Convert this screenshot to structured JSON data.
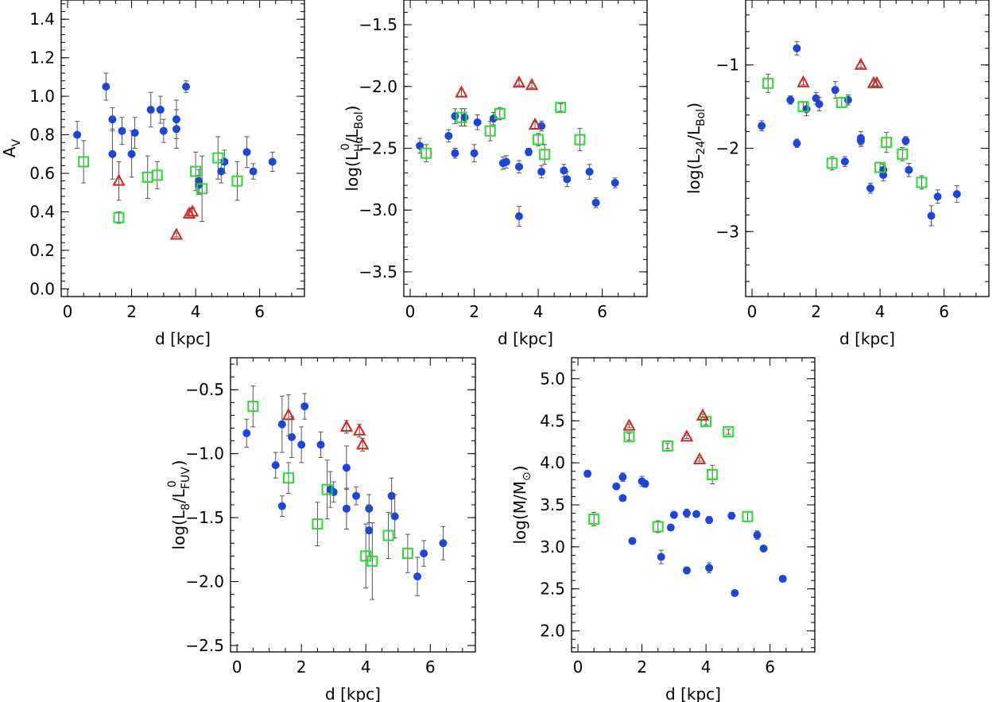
{
  "colors": {
    "blue": "#1747e0",
    "green": "#22e02a",
    "red": "#d6231c",
    "errorbar": "#555555",
    "axis": "#000000"
  },
  "series_styles": [
    {
      "marker": "filled-circle",
      "color": "#1747e0"
    },
    {
      "marker": "open-square",
      "color": "#22e02a"
    },
    {
      "marker": "open-triangle",
      "color": "#d6231c"
    }
  ],
  "chart_data": [
    {
      "type": "scatter",
      "xlabel": "d [kpc]",
      "ylabel": {
        "main": "A",
        "sub": "V"
      },
      "xlim": [
        -0.2,
        7.4
      ],
      "ylim": [
        -0.04,
        1.5
      ],
      "xticks": [
        0,
        2,
        4,
        6
      ],
      "xtick_labels": [
        "0",
        "2",
        "4",
        "6"
      ],
      "yticks": [
        0,
        0.2,
        0.4,
        0.6,
        0.8,
        1.0,
        1.2,
        1.4
      ],
      "ytick_labels": [
        "0.0",
        "0.2",
        "0.4",
        "0.6",
        "0.8",
        "1.0",
        "1.2",
        "1.4"
      ],
      "series": [
        {
          "x": [
            0.3,
            1.2,
            1.4,
            1.4,
            1.7,
            2.0,
            2.1,
            2.6,
            2.9,
            3.0,
            3.4,
            3.4,
            3.7,
            4.1,
            4.1,
            4.8,
            4.9,
            5.6,
            5.8,
            6.4
          ],
          "y": [
            0.8,
            1.05,
            0.88,
            0.7,
            0.82,
            0.7,
            0.81,
            0.93,
            0.93,
            0.82,
            0.83,
            0.88,
            1.05,
            0.56,
            0.54,
            0.61,
            0.66,
            0.71,
            0.61,
            0.66
          ],
          "err": [
            0.07,
            0.07,
            0.06,
            0.13,
            0.07,
            0.12,
            0.08,
            0.09,
            0.07,
            0.06,
            0.1,
            0.1,
            0.03,
            0.06,
            0.05,
            0.06,
            0.06,
            0.08,
            0.04,
            0.05
          ]
        },
        {
          "x": [
            0.5,
            1.6,
            2.5,
            2.8,
            4.0,
            4.2,
            4.7,
            5.3
          ],
          "y": [
            0.66,
            0.37,
            0.58,
            0.59,
            0.61,
            0.52,
            0.68,
            0.56
          ],
          "err": [
            0.11,
            0.03,
            0.11,
            0.07,
            0.1,
            0.17,
            0.11,
            0.1
          ]
        },
        {
          "x": [
            1.6,
            3.4,
            3.8,
            3.9
          ],
          "y": [
            0.56,
            0.28,
            0.39,
            0.4
          ],
          "err": [
            0.1,
            0.01,
            0.02,
            0.02
          ]
        }
      ]
    },
    {
      "type": "scatter",
      "xlabel": "d [kpc]",
      "ylabel": {
        "main": "log(L",
        "sub": "Hα",
        "sup": "0",
        "tail": "/L",
        "sub2": "Bol",
        "close": ")"
      },
      "xlim": [
        -0.2,
        7.4
      ],
      "ylim": [
        -3.7,
        -1.3
      ],
      "xticks": [
        0,
        2,
        4,
        6
      ],
      "xtick_labels": [
        "0",
        "2",
        "4",
        "6"
      ],
      "yticks": [
        -3.5,
        -3.0,
        -2.5,
        -2.0,
        -1.5
      ],
      "ytick_labels": [
        "−3.5",
        "−3.0",
        "−2.5",
        "−2.0",
        "−1.5"
      ],
      "series": [
        {
          "x": [
            0.3,
            1.2,
            1.4,
            1.4,
            1.7,
            2.0,
            2.1,
            2.6,
            2.9,
            3.0,
            3.4,
            3.4,
            3.7,
            4.1,
            4.1,
            4.8,
            4.9,
            5.6,
            5.8,
            6.4
          ],
          "y": [
            -2.48,
            -2.4,
            -2.24,
            -2.54,
            -2.25,
            -2.54,
            -2.29,
            -2.26,
            -2.62,
            -2.61,
            -2.65,
            -3.05,
            -2.53,
            -2.32,
            -2.69,
            -2.68,
            -2.75,
            -2.69,
            -2.94,
            -2.78
          ],
          "err": [
            0.06,
            0.05,
            0.06,
            0.04,
            0.07,
            0.07,
            0.06,
            0.05,
            0.05,
            0.05,
            0.05,
            0.08,
            0.03,
            0.04,
            0.05,
            0.05,
            0.06,
            0.06,
            0.04,
            0.04
          ]
        },
        {
          "x": [
            0.5,
            1.6,
            2.5,
            2.8,
            4.0,
            4.2,
            4.7,
            5.3
          ],
          "y": [
            -2.54,
            -2.25,
            -2.36,
            -2.22,
            -2.43,
            -2.55,
            -2.17,
            -2.43
          ],
          "err": [
            0.07,
            0.07,
            0.08,
            0.05,
            0.05,
            0.08,
            0.03,
            0.09
          ]
        },
        {
          "x": [
            1.6,
            3.4,
            3.8,
            3.9
          ],
          "y": [
            -2.05,
            -1.97,
            -1.99,
            -2.31
          ],
          "err": [
            0.03,
            0.02,
            0.02,
            0.03
          ]
        }
      ]
    },
    {
      "type": "scatter",
      "xlabel": "d [kpc]",
      "ylabel": {
        "main": "log(L",
        "sub": "24",
        "tail": "/L",
        "sub2": "Bol",
        "close": ")"
      },
      "xlim": [
        -0.2,
        7.4
      ],
      "ylim": [
        -3.78,
        -0.22
      ],
      "xticks": [
        0,
        2,
        4,
        6
      ],
      "xtick_labels": [
        "0",
        "2",
        "4",
        "6"
      ],
      "yticks": [
        -3,
        -2,
        -1
      ],
      "ytick_labels": [
        "−3",
        "−2",
        "−1"
      ],
      "series": [
        {
          "x": [
            0.3,
            1.2,
            1.4,
            1.4,
            1.7,
            2.0,
            2.1,
            2.6,
            2.9,
            3.0,
            3.4,
            3.4,
            3.7,
            4.1,
            4.1,
            4.8,
            4.9,
            5.6,
            5.8,
            6.4
          ],
          "y": [
            -1.73,
            -1.42,
            -0.8,
            -1.94,
            -1.53,
            -1.4,
            -1.47,
            -1.3,
            -2.16,
            -1.42,
            -1.91,
            -1.88,
            -2.48,
            -2.26,
            -2.32,
            -1.91,
            -2.26,
            -2.81,
            -2.58,
            -2.55
          ],
          "err": [
            0.06,
            0.05,
            0.08,
            0.05,
            0.08,
            0.07,
            0.08,
            0.1,
            0.06,
            0.06,
            0.07,
            0.08,
            0.06,
            0.07,
            0.07,
            0.05,
            0.08,
            0.12,
            0.08,
            0.1
          ]
        },
        {
          "x": [
            0.5,
            1.6,
            2.5,
            2.8,
            4.0,
            4.2,
            4.7,
            5.3
          ],
          "y": [
            -1.22,
            -1.5,
            -2.18,
            -1.45,
            -2.23,
            -1.93,
            -2.07,
            -2.41
          ],
          "err": [
            0.11,
            0.06,
            0.08,
            0.06,
            0.06,
            0.12,
            0.08,
            0.08
          ]
        },
        {
          "x": [
            1.6,
            3.4,
            3.8,
            3.9
          ],
          "y": [
            -1.21,
            -1.0,
            -1.22,
            -1.22
          ],
          "err": [
            0.03,
            0.03,
            0.03,
            0.03
          ]
        }
      ]
    },
    {
      "type": "scatter",
      "xlabel": "d [kpc]",
      "ylabel": {
        "main": "log(L",
        "sub": "8",
        "tail": "/L",
        "sub2": "FUV",
        "sup2": "0",
        "close": ")"
      },
      "xlim": [
        -0.2,
        7.4
      ],
      "ylim": [
        -2.55,
        -0.25
      ],
      "xticks": [
        0,
        2,
        4,
        6
      ],
      "xtick_labels": [
        "0",
        "2",
        "4",
        "6"
      ],
      "yticks": [
        -2.5,
        -2.0,
        -1.5,
        -1.0,
        -0.5
      ],
      "ytick_labels": [
        "−2.5",
        "−2.0",
        "−1.5",
        "−1.0",
        "−0.5"
      ],
      "series": [
        {
          "x": [
            0.3,
            1.2,
            1.4,
            1.4,
            1.7,
            2.0,
            2.1,
            2.6,
            2.9,
            3.0,
            3.4,
            3.4,
            3.7,
            4.1,
            4.1,
            4.8,
            4.9,
            5.6,
            5.8,
            6.4
          ],
          "y": [
            -0.84,
            -1.09,
            -0.77,
            -1.41,
            -0.87,
            -0.93,
            -0.63,
            -0.93,
            -1.28,
            -1.3,
            -1.11,
            -1.43,
            -1.33,
            -1.43,
            -1.6,
            -1.33,
            -1.49,
            -1.96,
            -1.78,
            -1.7
          ],
          "err": [
            0.11,
            0.1,
            0.22,
            0.08,
            0.16,
            0.14,
            0.1,
            0.1,
            0.14,
            0.08,
            0.17,
            0.16,
            0.07,
            0.11,
            0.2,
            0.14,
            0.17,
            0.15,
            0.1,
            0.13
          ]
        },
        {
          "x": [
            0.5,
            1.6,
            2.5,
            2.8,
            4.0,
            4.2,
            4.7,
            5.3
          ],
          "y": [
            -0.63,
            -1.19,
            -1.55,
            -1.28,
            -1.8,
            -1.84,
            -1.64,
            -1.78
          ],
          "err": [
            0.16,
            0.12,
            0.17,
            0.23,
            0.25,
            0.3,
            0.18,
            0.15
          ]
        },
        {
          "x": [
            1.6,
            3.4,
            3.8,
            3.9
          ],
          "y": [
            -0.7,
            -0.79,
            -0.82,
            -0.93
          ],
          "err": [
            0.16,
            0.05,
            0.05,
            0.05
          ]
        }
      ]
    },
    {
      "type": "scatter",
      "xlabel": "d [kpc]",
      "ylabel": {
        "main": "log(M/M",
        "sub": "⊙",
        "close": ")"
      },
      "xlim": [
        -0.2,
        7.4
      ],
      "ylim": [
        1.75,
        5.25
      ],
      "xticks": [
        0,
        2,
        4,
        6
      ],
      "xtick_labels": [
        "0",
        "2",
        "4",
        "6"
      ],
      "yticks": [
        2.0,
        2.5,
        3.0,
        3.5,
        4.0,
        4.5,
        5.0
      ],
      "ytick_labels": [
        "2.0",
        "2.5",
        "3.0",
        "3.5",
        "4.0",
        "4.5",
        "5.0"
      ],
      "series": [
        {
          "x": [
            0.3,
            1.2,
            1.4,
            1.4,
            1.7,
            2.0,
            2.1,
            2.6,
            2.9,
            3.0,
            3.4,
            3.4,
            3.7,
            4.1,
            4.1,
            4.8,
            4.9,
            5.6,
            5.8,
            6.4
          ],
          "y": [
            3.87,
            3.72,
            3.83,
            3.58,
            3.07,
            3.78,
            3.75,
            2.88,
            3.23,
            3.38,
            3.4,
            2.72,
            3.39,
            3.32,
            2.75,
            3.37,
            2.45,
            3.14,
            2.98,
            2.62
          ],
          "err": [
            0.04,
            0.03,
            0.05,
            0.03,
            0.03,
            0.06,
            0.04,
            0.08,
            0.03,
            0.03,
            0.05,
            0.04,
            0.03,
            0.04,
            0.06,
            0.04,
            0.03,
            0.05,
            0.03,
            0.03
          ]
        },
        {
          "x": [
            0.5,
            1.6,
            2.5,
            2.8,
            4.0,
            4.2,
            4.7,
            5.3
          ],
          "y": [
            3.33,
            4.31,
            3.24,
            4.2,
            4.49,
            3.86,
            4.37,
            3.36
          ],
          "err": [
            0.08,
            0.04,
            0.07,
            0.03,
            0.04,
            0.11,
            0.03,
            0.06
          ]
        },
        {
          "x": [
            1.6,
            3.4,
            3.8,
            3.9
          ],
          "y": [
            4.44,
            4.31,
            4.04,
            4.56
          ],
          "err": [
            0.02,
            0.02,
            0.02,
            0.02
          ]
        }
      ]
    }
  ]
}
